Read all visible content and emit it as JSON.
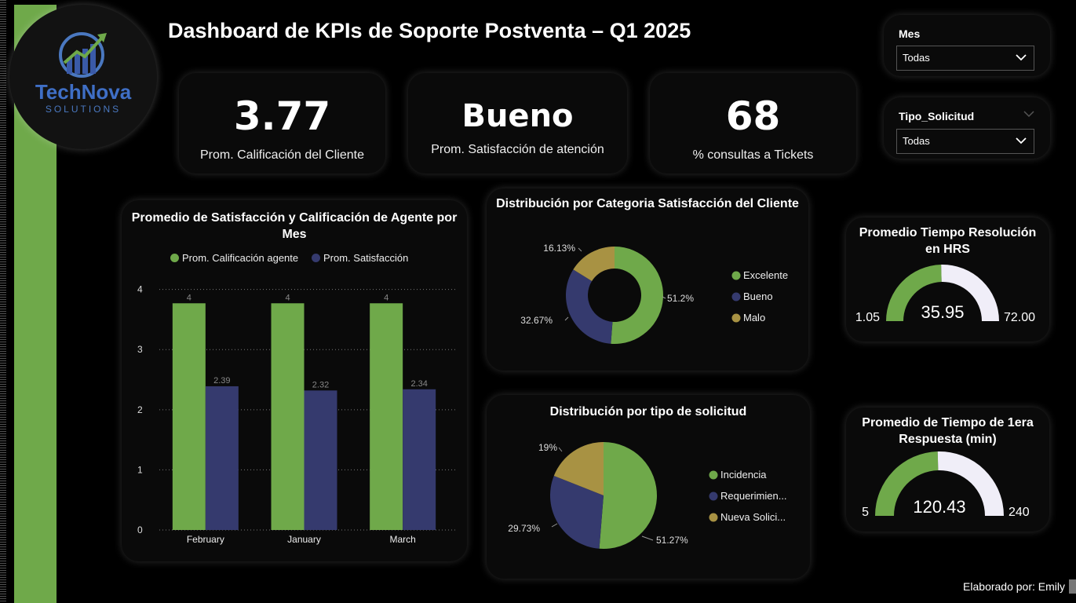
{
  "header": {
    "title": "Dashboard de KPIs de Soporte Postventa – Q1 2025"
  },
  "logo": {
    "name": "TechNova",
    "tagline": "SOLUTIONS"
  },
  "kpis": [
    {
      "value": "3.77",
      "label": "Prom. Calificación del Cliente"
    },
    {
      "value": "Bueno",
      "label": "Prom.  Satisfacción de atención"
    },
    {
      "value": "68",
      "label": "% consultas a Tickets"
    }
  ],
  "filters": [
    {
      "label": "Mes",
      "value": "Todas"
    },
    {
      "label": "Tipo_Solicitud",
      "value": "Todas"
    }
  ],
  "colors": {
    "green": "#6fa94a",
    "navy": "#353a6e",
    "gold": "#a89243",
    "gauge_rest": "#f0eef8"
  },
  "chart_data": [
    {
      "type": "bar",
      "title": "Promedio de Satisfacción y Calificación de Agente por Mes",
      "categories": [
        "February",
        "January",
        "March"
      ],
      "series": [
        {
          "name": "Prom. Calificación agente",
          "values": [
            3.77,
            3.77,
            3.77
          ],
          "labels": [
            "4",
            "4",
            "4"
          ]
        },
        {
          "name": "Prom. Satisfacción",
          "values": [
            2.39,
            2.32,
            2.34
          ],
          "labels": [
            "2.39",
            "2.32",
            "2.34"
          ]
        }
      ],
      "yticks": [
        "0",
        "1",
        "2",
        "3",
        "4"
      ],
      "ylim": [
        0,
        4.1
      ],
      "grid": true,
      "legend": "top"
    },
    {
      "type": "pie",
      "donut": true,
      "title": "Distribución por Categoria Satisfacción del Cliente",
      "slices": [
        {
          "name": "Excelente",
          "value": 51.2,
          "label": "51.2%"
        },
        {
          "name": "Bueno",
          "value": 32.67,
          "label": "32.67%"
        },
        {
          "name": "Malo",
          "value": 16.13,
          "label": "16.13%"
        }
      ],
      "legend": "right"
    },
    {
      "type": "pie",
      "title": "Distribución por tipo de solicitud",
      "slices": [
        {
          "name": "Incidencia",
          "value": 51.27,
          "label": "51.27%"
        },
        {
          "name": "Requerimien...",
          "value": 29.73,
          "label": "29.73%"
        },
        {
          "name": "Nueva Solici...",
          "value": 19,
          "label": "19%"
        }
      ],
      "legend": "right"
    },
    {
      "type": "gauge",
      "title": "Promedio Tiempo Resolución en HRS",
      "min": 1.05,
      "max": 72.0,
      "value": 35.95,
      "min_label": "1.05",
      "max_label": "72.00",
      "value_label": "35.95"
    },
    {
      "type": "gauge",
      "title": "Promedio de Tiempo de 1era Respuesta (min)",
      "min": 5,
      "max": 240,
      "value": 120.43,
      "min_label": "5",
      "max_label": "240",
      "value_label": "120.43"
    }
  ],
  "footer": {
    "credit": "Elaborado por: Emily"
  }
}
